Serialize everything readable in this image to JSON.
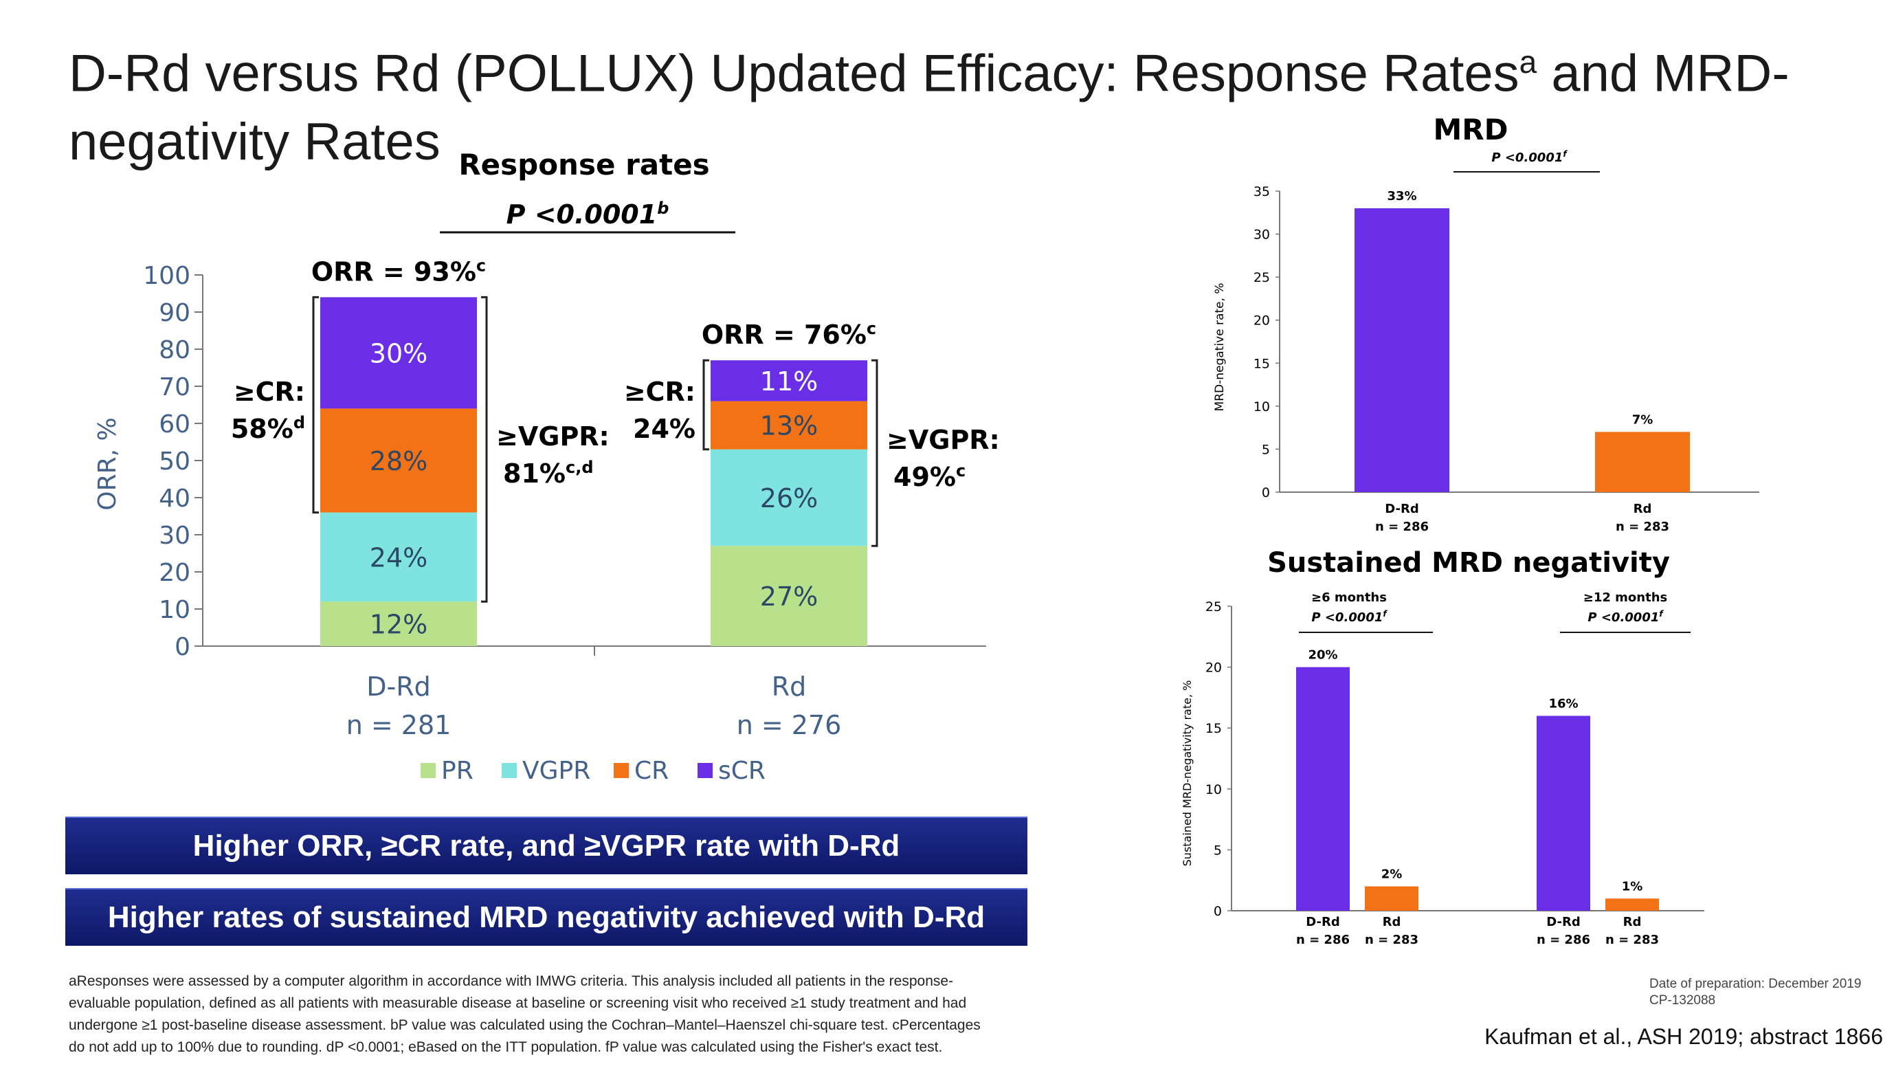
{
  "page": {
    "title": "D-Rd versus Rd (POLLUX) Updated Efficacy: Response Rates",
    "title_sup": "a",
    "title_tail": " and MRD-negativity Rates"
  },
  "chart_data": [
    {
      "type": "bar",
      "stacked": true,
      "title": "Response rates",
      "pvalue": "P <0.0001",
      "pvalue_sup": "b",
      "ylabel": "ORR, %",
      "ylim": [
        0,
        100
      ],
      "yticks": [
        0,
        10,
        20,
        30,
        40,
        50,
        60,
        70,
        80,
        90,
        100
      ],
      "categories": [
        "D-Rd",
        "Rd"
      ],
      "category_n": [
        "n = 281",
        "n = 276"
      ],
      "series": [
        {
          "name": "PR",
          "color": "#b9e08a",
          "values": [
            12,
            27
          ],
          "labels": [
            "12%",
            "27%"
          ]
        },
        {
          "name": "VGPR",
          "color": "#7fe3e0",
          "values": [
            24,
            26
          ],
          "labels": [
            "24%",
            "26%"
          ]
        },
        {
          "name": "CR",
          "color": "#f47216",
          "values": [
            28,
            13
          ],
          "labels": [
            "28%",
            "13%"
          ]
        },
        {
          "name": "sCR",
          "color": "#6a2ee6",
          "values": [
            30,
            11
          ],
          "labels": [
            "30%",
            "11%"
          ]
        }
      ],
      "orr": [
        "ORR = 93%",
        "ORR = 76%"
      ],
      "orr_sup": [
        "c",
        "c"
      ],
      "cr_label": "≥CR:",
      "cr_values": [
        "58%",
        "24%"
      ],
      "cr_sup": [
        "d",
        ""
      ],
      "vgpr_label": "≥VGPR:",
      "vgpr_values": [
        "81%",
        "49%"
      ],
      "vgpr_sup": [
        "c,d",
        "c"
      ],
      "legend_position": "bottom"
    },
    {
      "type": "bar",
      "title": "MRD",
      "pvalue": "P <0.0001",
      "pvalue_sup": "f",
      "ylabel": "MRD-negative rate, %",
      "ylim": [
        0,
        35
      ],
      "yticks": [
        0,
        5,
        10,
        15,
        20,
        25,
        30,
        35
      ],
      "categories": [
        "D-Rd",
        "Rd"
      ],
      "category_n": [
        "n = 286",
        "n = 283"
      ],
      "values": [
        33,
        7
      ],
      "labels": [
        "33%",
        "7%"
      ],
      "colors": [
        "#6a2ee6",
        "#f47216"
      ]
    },
    {
      "type": "bar",
      "title": "Sustained MRD negativity",
      "ylabel": "Sustained MRD-negativity rate, %",
      "ylim": [
        0,
        25
      ],
      "yticks": [
        0,
        5,
        10,
        15,
        20,
        25
      ],
      "groups": [
        {
          "name": "≥6 months",
          "pvalue": "P <0.0001",
          "pvalue_sup": "f",
          "categories": [
            "D-Rd",
            "Rd"
          ],
          "category_n": [
            "n = 286",
            "n = 283"
          ],
          "values": [
            20,
            2
          ],
          "labels": [
            "20%",
            "2%"
          ]
        },
        {
          "name": "≥12 months",
          "pvalue": "P <0.0001",
          "pvalue_sup": "f",
          "categories": [
            "D-Rd",
            "Rd"
          ],
          "category_n": [
            "n = 286",
            "n = 283"
          ],
          "values": [
            16,
            1
          ],
          "labels": [
            "16%",
            "1%"
          ]
        }
      ],
      "colors": [
        "#6a2ee6",
        "#f47216"
      ]
    }
  ],
  "banners": [
    "Higher ORR, ≥CR rate, and ≥VGPR rate with D-Rd",
    "Higher rates of sustained MRD negativity achieved with D-Rd"
  ],
  "footnotes": [
    "aResponses were assessed by a computer algorithm in accordance with IMWG criteria. This analysis included all patients in the response-",
    "evaluable population, defined as all patients with measurable disease at baseline or screening visit who received ≥1 study treatment and had",
    "undergone ≥1 post-baseline disease assessment. bP value was calculated using the Cochran–Mantel–Haenszel chi-square test. cPercentages",
    "do not add up to 100% due to rounding. dP <0.0001; eBased on the ITT population. fP value was calculated using the Fisher's exact test."
  ],
  "prep_date": "Date of preparation: December 2019",
  "prep_code": "CP-132088",
  "citation": "Kaufman et al., ASH 2019; abstract 1866"
}
